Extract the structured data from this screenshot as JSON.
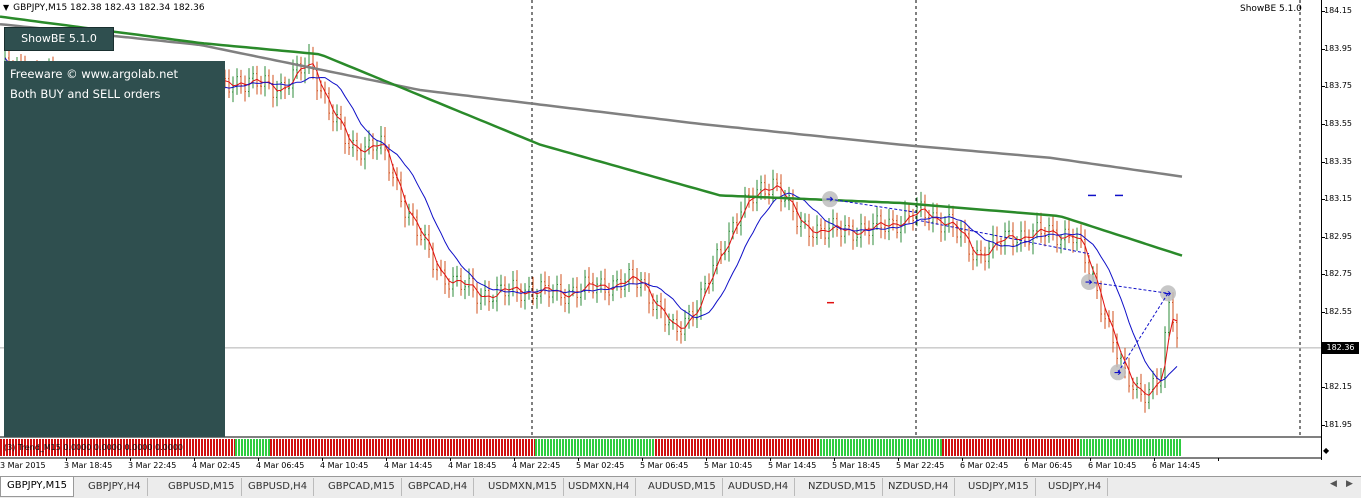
{
  "chart": {
    "header": "GBPJPY,M15  182.38 182.43 182.34 182.36",
    "showbe_label": "ShowBE 5.1.0",
    "panel_button": "ShowBE 5.1.0",
    "info_lines": [
      "Freeware © www.argolab.net",
      "Both BUY and SELL orders"
    ],
    "indicator_label": "(3) Trend_M15 0.0000 0.0000 0.0000 0.0000",
    "current_price": "182.36"
  },
  "chart_data": {
    "type": "candlestick",
    "symbol": "GBPJPY",
    "timeframe": "M15",
    "ylim": [
      181.95,
      184.15
    ],
    "price_ticks": [
      "184.15",
      "183.95",
      "183.75",
      "183.55",
      "183.35",
      "183.15",
      "182.95",
      "182.75",
      "182.55",
      "182.36",
      "182.15",
      "181.95"
    ],
    "time_ticks": [
      "3 Mar 2015",
      "3 Mar 18:45",
      "3 Mar 22:45",
      "4 Mar 02:45",
      "4 Mar 06:45",
      "4 Mar 10:45",
      "4 Mar 14:45",
      "4 Mar 18:45",
      "4 Mar 22:45",
      "5 Mar 02:45",
      "5 Mar 06:45",
      "5 Mar 10:45",
      "5 Mar 14:45",
      "5 Mar 18:45",
      "5 Mar 22:45",
      "6 Mar 02:45",
      "6 Mar 06:45",
      "6 Mar 10:45",
      "6 Mar 14:45"
    ],
    "grid": false,
    "colors": {
      "up": "#2e8b3a",
      "down": "#d2501e",
      "ma_fast": "#e01010",
      "ma_mid": "#1010c8",
      "ma_slow": "#2a8a2a",
      "ma_long": "#808080",
      "trend_up": "#2ecc40",
      "trend_down": "#d01010"
    }
  },
  "tabs": [
    "GBPJPY,M15",
    "GBPJPY,H4",
    "GBPUSD,M15",
    "GBPUSD,H4",
    "GBPCAD,M15",
    "GBPCAD,H4",
    "USDMXN,M15",
    "USDMXN,H4",
    "AUDUSD,M15",
    "AUDUSD,H4",
    "NZDUSD,M15",
    "NZDUSD,H4",
    "USDJPY,M15",
    "USDJPY,H4"
  ],
  "icons": {
    "header_arrow": "triangle-down-icon",
    "tab_prev": "arrow-left-icon",
    "tab_next": "arrow-right-icon"
  }
}
